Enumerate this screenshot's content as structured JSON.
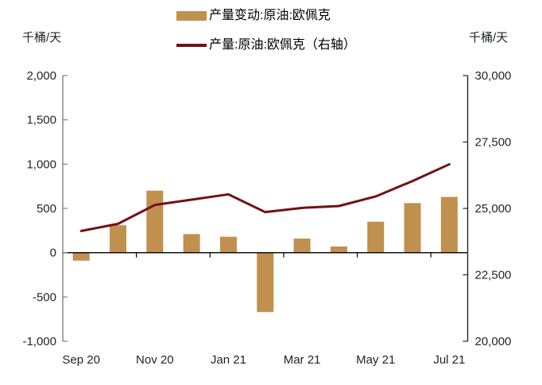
{
  "axis_unit_left": "千桶/天",
  "axis_unit_right": "千桶/天",
  "legend": {
    "bar_label": "产量变动:原油:欧佩克",
    "line_label": "产量:原油:欧佩克（右轴）"
  },
  "colors": {
    "bar": "#C0904F",
    "line": "#721115",
    "zero_line": "#000000",
    "left_axis": "#808080",
    "right_axis": "#262626",
    "tick_text": "#21242b"
  },
  "chart_data": {
    "type": "bar",
    "subtype": "bar-line combo, dual axis",
    "categories": [
      "Sep 20",
      "Oct 20",
      "Nov 20",
      "Dec 20",
      "Jan 21",
      "Feb 21",
      "Mar 21",
      "Apr 21",
      "May 21",
      "Jun 21",
      "Jul 21"
    ],
    "series": [
      {
        "name": "产量变动:原油:欧佩克",
        "type": "bar",
        "axis": "left",
        "values": [
          -90,
          310,
          700,
          210,
          180,
          -670,
          160,
          70,
          350,
          560,
          630
        ]
      },
      {
        "name": "产量:原油:欧佩克（右轴）",
        "type": "line",
        "axis": "right",
        "values": [
          24150,
          24420,
          25130,
          25330,
          25530,
          24860,
          25020,
          25090,
          25450,
          26030,
          26660
        ]
      }
    ],
    "left_axis": {
      "unit": "千桶/天",
      "min": -1000,
      "max": 2000,
      "step": 500,
      "tick_labels": [
        "2,000",
        "1,500",
        "1,000",
        "500",
        "0",
        "-500",
        "-1,000"
      ]
    },
    "right_axis": {
      "unit": "千桶/天",
      "min": 20000,
      "max": 30000,
      "step": 2500,
      "tick_labels": [
        "30,000",
        "27,500",
        "25,000",
        "22,500",
        "20,000"
      ]
    },
    "x_tick_labels": [
      "Sep 20",
      "Nov 20",
      "Jan 21",
      "Mar 21",
      "May 21",
      "Jul 21"
    ],
    "title": "",
    "grid": false,
    "legend_position": "top-center"
  }
}
